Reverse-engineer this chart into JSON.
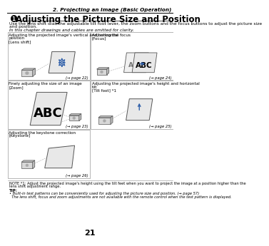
{
  "page_title": "2. Projecting an Image (Basic Operation)",
  "section_title": "Adjusting the Picture Size and Position",
  "intro_line1": "Use the lens shift dial, the adjustable tilt foot lever, the zoom buttons and the focus buttons to adjust the picture size",
  "intro_line2": "and position.",
  "italic_note": "In this chapter drawings and cables are omitted for clarity.",
  "cells": [
    {
      "title_lines": [
        "Adjusting the projected image's vertical and horizontal",
        "position",
        "[Lens shift]"
      ],
      "page_ref": "(→ page 22)",
      "col": 0,
      "row": 0
    },
    {
      "title_lines": [
        "Adjusting the focus",
        "[Focus]"
      ],
      "page_ref": "(→ page 24)",
      "col": 1,
      "row": 0
    },
    {
      "title_lines": [
        "Finely adjusting the size of an image",
        "[Zoom]"
      ],
      "page_ref": "(→ page 23)",
      "col": 0,
      "row": 1
    },
    {
      "title_lines": [
        "Adjusting the projected image's height and horizontal",
        "tilt",
        "[Tilt foot] *1"
      ],
      "page_ref": "(→ page 25)",
      "col": 1,
      "row": 1
    },
    {
      "title_lines": [
        "Adjusting the keystone correction",
        "[Keystone]"
      ],
      "page_ref": "(→ page 26)",
      "col": 0,
      "row": 2
    }
  ],
  "note_line1": "NOTE *1: Adjust the projected image's height using the tilt feet when you want to project the image at a position higher than the",
  "note_line2": "lens shift adjustment range.",
  "tip_title": "TIP:",
  "tip_line1": "• Built-in test patterns can be conveniently used for adjusting the picture size and position. (→ page 57)",
  "tip_line2": "  The lens shift, focus and zoom adjustments are not available with the remote control when the test pattern is displayed.",
  "page_number": "21",
  "bg_color": "#ffffff",
  "border_color": "#999999",
  "blue_color": "#3060aa",
  "gray_screen": "#d8d8d8",
  "gray_proj": "#cccccc",
  "dark_gray": "#555555"
}
